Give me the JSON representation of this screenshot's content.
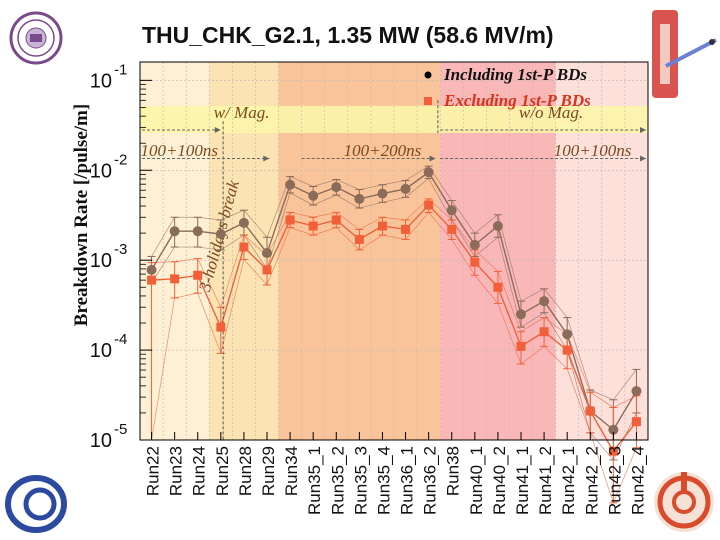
{
  "title": "THU_CHK_G2.1,  1.35 MW (58.6 MV/m)",
  "chart_data": {
    "type": "line",
    "title": "THU_CHK_G2.1,  1.35 MW (58.6 MV/m)",
    "ylabel": "Breakdown Rate  [/pulse/m]",
    "xlabel": "",
    "y_scale": "log",
    "ylim": [
      1e-05,
      0.16
    ],
    "y_ticks": [
      {
        "value": 0.1,
        "base": "10",
        "exp": "-1"
      },
      {
        "value": 0.01,
        "base": "10",
        "exp": "-2"
      },
      {
        "value": 0.001,
        "base": "10",
        "exp": "-3"
      },
      {
        "value": 0.0001,
        "base": "10",
        "exp": "-4"
      },
      {
        "value": 1e-05,
        "base": "10",
        "exp": "-5"
      }
    ],
    "categories": [
      "Run22",
      "Run23",
      "Run24",
      "Run25",
      "Run28",
      "Run29",
      "Run34",
      "Run35_1",
      "Run35_2",
      "Run35_3",
      "Run35_4",
      "Run36_1",
      "Run36_2",
      "Run38",
      "Run40_1",
      "Run40_2",
      "Run41_1",
      "Run41_2",
      "Run42_1",
      "Run42_2",
      "Run42_3",
      "Run42_4"
    ],
    "grid": true,
    "legend_position": "top-right",
    "series": [
      {
        "name": "Including 1st-P BDs",
        "color": "#8b6b5a",
        "values": [
          0.00078,
          0.0021,
          0.0021,
          0.00195,
          0.0026,
          0.0012,
          0.0069,
          0.0052,
          0.0065,
          0.0048,
          0.0055,
          0.0062,
          0.0095,
          0.0036,
          0.00148,
          0.0024,
          0.00025,
          0.00035,
          0.00015,
          2.1e-05,
          1.3e-05,
          3.5e-05
        ],
        "err_low": [
          0.00056,
          0.0014,
          0.0014,
          0.0013,
          0.0019,
          0.0008,
          0.0056,
          0.0041,
          0.0053,
          0.0038,
          0.0044,
          0.005,
          0.0081,
          0.0028,
          0.0011,
          0.0018,
          0.00018,
          0.00026,
          0.0001,
          1.2e-05,
          6e-06,
          2e-05
        ],
        "err_high": [
          0.0011,
          0.003,
          0.003,
          0.0028,
          0.0036,
          0.0018,
          0.0085,
          0.0066,
          0.0079,
          0.0061,
          0.0069,
          0.0077,
          0.0111,
          0.0046,
          0.002,
          0.0032,
          0.00035,
          0.00048,
          0.00023,
          3.6e-05,
          2.8e-05,
          6.1e-05
        ]
      },
      {
        "name": "Excluding 1st-P BDs",
        "color": "#f2603a",
        "values": [
          0.0006,
          0.00062,
          0.00068,
          0.00018,
          0.0014,
          0.00078,
          0.0028,
          0.0024,
          0.0028,
          0.0017,
          0.0024,
          0.0022,
          0.0041,
          0.0022,
          0.00095,
          0.0005,
          0.00011,
          0.00016,
          0.0001,
          2.1e-05,
          7.5e-06,
          1.6e-05
        ],
        "err_low": [
          1e-05,
          0.00038,
          0.00043,
          9.2e-05,
          0.00102,
          0.00053,
          0.0023,
          0.0019,
          0.0023,
          0.0013,
          0.0019,
          0.0017,
          0.0034,
          0.0017,
          0.00068,
          0.00033,
          7e-05,
          0.00011,
          6.2e-05,
          1.2e-05,
          2e-06,
          8.2e-06
        ],
        "err_high": [
          0.00094,
          0.00096,
          0.00104,
          0.0003,
          0.0019,
          0.00113,
          0.0034,
          0.003,
          0.0034,
          0.0022,
          0.003,
          0.0028,
          0.0048,
          0.0028,
          0.0013,
          0.00075,
          0.00016,
          0.00023,
          0.00015,
          3.4e-05,
          2.3e-05,
          3.1e-05
        ]
      }
    ],
    "regions": [
      {
        "from": "Run22",
        "to": "Run25",
        "color": "#fdf0d4"
      },
      {
        "from": "Run25",
        "to": "Run29",
        "color": "#fbe3b4"
      },
      {
        "from": "Run34",
        "to": "Run36_2",
        "color": "#f9c49a"
      },
      {
        "from": "Run38",
        "to": "Run41_2",
        "color": "#fab7b7"
      },
      {
        "from": "Run42_1",
        "to": "Run42_4",
        "color": "#fde0da"
      }
    ],
    "magnet_band": {
      "ymin": 0.026,
      "ymax": 0.052,
      "color": "#fbf5a8"
    },
    "annotations": [
      {
        "text": "w/ Mag.",
        "x_index": 4.4,
        "y": 0.038
      },
      {
        "text": "w/o Mag.",
        "x_index": 17.8,
        "y": 0.038
      },
      {
        "text": "100+100ns",
        "x_index": 1.7,
        "y": 0.0145
      },
      {
        "text": "100+200ns",
        "x_index": 10.5,
        "y": 0.0145
      },
      {
        "text": "100+100ns",
        "x_index": 19.6,
        "y": 0.0145
      },
      {
        "text": "3-holidays break",
        "x_index": 3.65,
        "y": 0.0018,
        "rotate": -75
      }
    ],
    "dividers": [
      {
        "x_index": 3.6,
        "y_top": 0.035,
        "y_bottom": 1e-05
      },
      {
        "x_index": 12.9,
        "y_top": 0.06,
        "y_bottom": 0.026
      }
    ]
  }
}
